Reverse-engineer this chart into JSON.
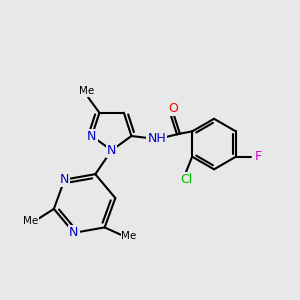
{
  "bg_color": "#e8e8e8",
  "bond_color": "#000000",
  "bond_width": 1.5,
  "atom_colors": {
    "N": "#0000cc",
    "O": "#ff0000",
    "Cl": "#00bb00",
    "F": "#cc00cc",
    "C": "#000000",
    "H": "#555555"
  },
  "font_size": 9,
  "fig_size": [
    3.0,
    3.0
  ],
  "dpi": 100,
  "xlim": [
    0,
    10
  ],
  "ylim": [
    0,
    10
  ]
}
